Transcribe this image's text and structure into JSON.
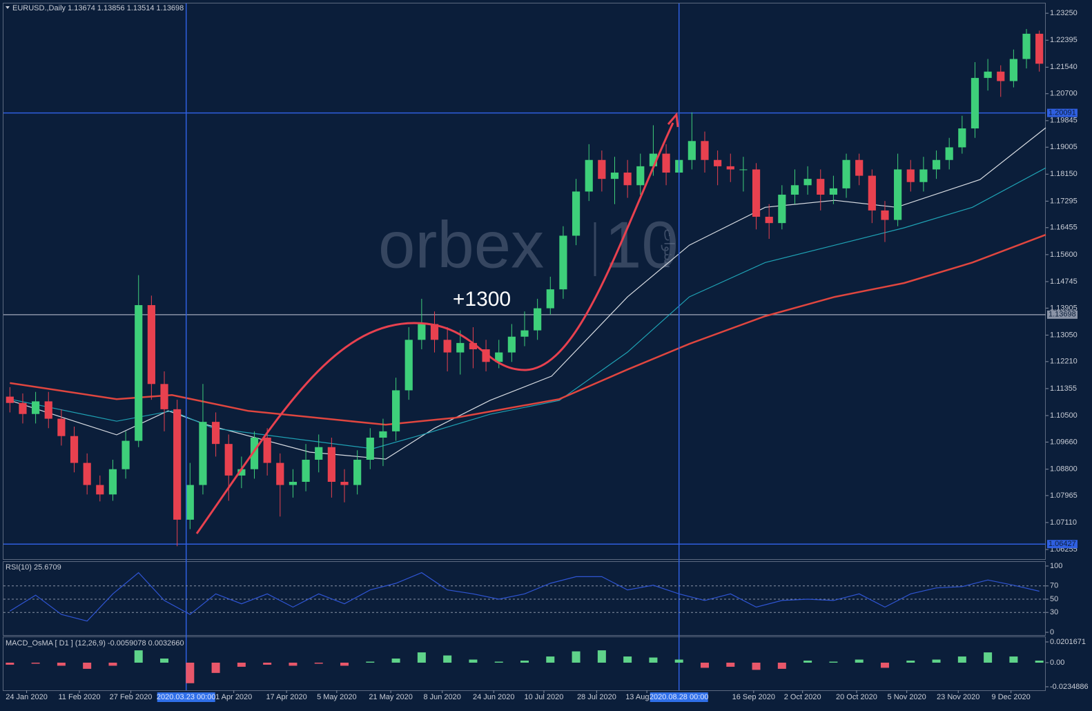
{
  "chart_data": [
    {
      "type": "candlestick",
      "title": "EURUSD.,Daily  1.13674 1.13856 1.13514 1.13698",
      "annotation": "+1300",
      "watermark": [
        "orbex",
        "10",
        "سنوات"
      ],
      "up_color": "#3ecf7a",
      "down_color": "#e8414f",
      "open": [
        1.111,
        1.109,
        1.1055,
        1.1095,
        1.104,
        1.0985,
        1.09,
        1.083,
        1.08,
        1.088,
        1.097,
        1.14,
        1.115,
        1.107,
        1.072,
        1.083,
        1.103,
        1.096,
        1.086,
        1.088,
        1.098,
        1.09,
        1.083,
        1.084,
        1.091,
        1.095,
        1.084,
        1.083,
        1.091,
        1.098,
        1.1,
        1.113,
        1.129,
        1.134,
        1.129,
        1.125,
        1.128,
        1.126,
        1.122,
        1.125,
        1.13,
        1.132,
        1.139,
        1.145,
        1.162,
        1.176,
        1.186,
        1.18,
        1.182,
        1.178,
        1.184,
        1.188,
        1.182,
        1.186,
        1.192,
        1.186,
        1.184,
        1.183,
        1.183,
        1.168,
        1.166,
        1.175,
        1.178,
        1.18,
        1.175,
        1.177,
        1.186,
        1.181,
        1.17,
        1.167,
        1.183,
        1.179,
        1.183,
        1.186,
        1.19,
        1.196,
        1.212,
        1.214,
        1.211,
        1.218,
        1.226
      ],
      "high": [
        1.114,
        1.112,
        1.1125,
        1.1125,
        1.107,
        1.1015,
        1.093,
        1.086,
        1.091,
        1.1,
        1.1495,
        1.143,
        1.119,
        1.11,
        1.09,
        1.115,
        1.106,
        1.099,
        1.092,
        1.1,
        1.101,
        1.093,
        1.088,
        1.096,
        1.099,
        1.098,
        1.088,
        1.094,
        1.101,
        1.104,
        1.117,
        1.133,
        1.142,
        1.138,
        1.133,
        1.132,
        1.133,
        1.129,
        1.129,
        1.134,
        1.138,
        1.142,
        1.149,
        1.165,
        1.18,
        1.191,
        1.189,
        1.187,
        1.186,
        1.188,
        1.197,
        1.191,
        1.19,
        1.2011,
        1.195,
        1.189,
        1.188,
        1.187,
        1.185,
        1.172,
        1.178,
        1.183,
        1.184,
        1.183,
        1.181,
        1.188,
        1.188,
        1.183,
        1.173,
        1.188,
        1.186,
        1.187,
        1.189,
        1.193,
        1.2,
        1.217,
        1.218,
        1.216,
        1.221,
        1.2275,
        1.227
      ],
      "low": [
        1.106,
        1.1025,
        1.1025,
        1.101,
        1.0955,
        1.087,
        1.08,
        1.0778,
        1.078,
        1.085,
        1.095,
        1.11,
        1.1,
        1.0636,
        1.069,
        1.08,
        1.092,
        1.078,
        1.082,
        1.085,
        1.086,
        1.073,
        1.079,
        1.081,
        1.087,
        1.079,
        1.0775,
        1.08,
        1.088,
        1.089,
        1.097,
        1.11,
        1.126,
        1.125,
        1.119,
        1.118,
        1.12,
        1.119,
        1.12,
        1.122,
        1.127,
        1.129,
        1.137,
        1.142,
        1.159,
        1.173,
        1.176,
        1.172,
        1.174,
        1.175,
        1.181,
        1.178,
        1.179,
        1.183,
        1.182,
        1.178,
        1.179,
        1.176,
        1.164,
        1.161,
        1.164,
        1.172,
        1.175,
        1.17,
        1.172,
        1.174,
        1.178,
        1.166,
        1.16,
        1.165,
        1.176,
        1.176,
        1.18,
        1.183,
        1.188,
        1.193,
        1.208,
        1.206,
        1.209,
        1.215,
        1.214
      ],
      "close": [
        1.109,
        1.1055,
        1.1095,
        1.104,
        1.0985,
        1.09,
        1.083,
        1.08,
        1.088,
        1.097,
        1.14,
        1.115,
        1.107,
        1.072,
        1.083,
        1.103,
        1.096,
        1.086,
        1.088,
        1.098,
        1.09,
        1.083,
        1.084,
        1.091,
        1.095,
        1.084,
        1.083,
        1.091,
        1.098,
        1.1,
        1.113,
        1.129,
        1.134,
        1.129,
        1.125,
        1.128,
        1.126,
        1.122,
        1.125,
        1.13,
        1.132,
        1.139,
        1.145,
        1.162,
        1.176,
        1.186,
        1.18,
        1.182,
        1.178,
        1.184,
        1.188,
        1.182,
        1.186,
        1.192,
        1.186,
        1.184,
        1.183,
        1.183,
        1.168,
        1.166,
        1.175,
        1.178,
        1.18,
        1.175,
        1.177,
        1.186,
        1.181,
        1.17,
        1.167,
        1.183,
        1.179,
        1.183,
        1.186,
        1.19,
        1.196,
        1.212,
        1.214,
        1.211,
        1.218,
        1.226,
        1.2165
      ],
      "series": [
        {
          "color": "#d9dde3",
          "x": [
            0,
            8.3,
            12.3,
            15.3,
            23.3,
            29.2,
            33,
            37.3,
            42.1,
            48,
            52.8,
            58.7,
            64.1,
            68.9,
            75.4,
            80.5
          ],
          "values": [
            1.1098,
            1.0989,
            1.1065,
            1.1021,
            1.0934,
            1.0912,
            1.101,
            1.1098,
            1.1175,
            1.1426,
            1.159,
            1.171,
            1.1732,
            1.171,
            1.1798,
            1.1962
          ]
        },
        {
          "color": "#1fa3b5",
          "x": [
            0,
            8.3,
            12.6,
            15.8,
            23.9,
            28.2,
            32,
            37.3,
            42.7,
            48,
            52.8,
            58.7,
            64.1,
            69.5,
            74.8,
            80.5
          ],
          "values": [
            1.1102,
            1.1032,
            1.1065,
            1.101,
            1.0967,
            1.0945,
            1.0989,
            1.1054,
            1.1098,
            1.1251,
            1.1426,
            1.1535,
            1.159,
            1.1645,
            1.171,
            1.1835
          ]
        },
        {
          "color": "#e0463f",
          "x": [
            0,
            8.3,
            12.6,
            18.5,
            29.2,
            34.6,
            42.7,
            48,
            52.8,
            58.7,
            64.1,
            69.5,
            74.8,
            80.5
          ],
          "values": [
            1.1153,
            1.1102,
            1.1115,
            1.1065,
            1.1021,
            1.1043,
            1.1102,
            1.1196,
            1.1277,
            1.1365,
            1.1426,
            1.147,
            1.1535,
            1.1623
          ]
        }
      ],
      "xlim": [
        -0.5,
        80.5
      ],
      "xticks": [
        {
          "value": 1.3,
          "label": "24 Jan 2020"
        },
        {
          "value": 5.4,
          "label": "11 Feb 2020"
        },
        {
          "value": 9.4,
          "label": "27 Feb 2020"
        },
        {
          "value": 17.4,
          "label": "1 Apr 2020"
        },
        {
          "value": 21.5,
          "label": "17 Apr 2020"
        },
        {
          "value": 25.4,
          "label": "5 May 2020"
        },
        {
          "value": 29.6,
          "label": "21 May 2020"
        },
        {
          "value": 33.6,
          "label": "8 Jun 2020"
        },
        {
          "value": 37.6,
          "label": "24 Jun 2020"
        },
        {
          "value": 41.5,
          "label": "10 Jul 2020"
        },
        {
          "value": 45.6,
          "label": "28 Jul 2020"
        },
        {
          "value": 49.5,
          "label": "13 Aug 2020"
        },
        {
          "value": 57.8,
          "label": "16 Sep 2020"
        },
        {
          "value": 61.6,
          "label": "2 Oct 2020"
        },
        {
          "value": 65.8,
          "label": "20 Oct 2020"
        },
        {
          "value": 69.7,
          "label": "5 Nov 2020"
        },
        {
          "value": 73.7,
          "label": "23 Nov 2020"
        },
        {
          "value": 77.8,
          "label": "9 Dec 2020"
        }
      ],
      "crosshair_x": [
        {
          "value": 13.7,
          "label": "2020.03.23 00:00"
        },
        {
          "value": 52,
          "label": "2020.08.28 00:00"
        }
      ],
      "ylim": [
        1.0595,
        1.2356
      ],
      "yticks": [
        {
          "value": 1.2325,
          "label": "1.23250"
        },
        {
          "value": 1.22395,
          "label": "1.22395"
        },
        {
          "value": 1.2154,
          "label": "1.21540"
        },
        {
          "value": 1.207,
          "label": "1.20700"
        },
        {
          "value": 1.19845,
          "label": "1.19845"
        },
        {
          "value": 1.19005,
          "label": "1.19005"
        },
        {
          "value": 1.1815,
          "label": "1.18150"
        },
        {
          "value": 1.17295,
          "label": "1.17295"
        },
        {
          "value": 1.16455,
          "label": "1.16455"
        },
        {
          "value": 1.156,
          "label": "1.15600"
        },
        {
          "value": 1.14745,
          "label": "1.14745"
        },
        {
          "value": 1.13905,
          "label": "1.13905"
        },
        {
          "value": 1.1305,
          "label": "1.13050"
        },
        {
          "value": 1.1221,
          "label": "1.12210"
        },
        {
          "value": 1.11355,
          "label": "1.11355"
        },
        {
          "value": 1.105,
          "label": "1.10500"
        },
        {
          "value": 1.0966,
          "label": "1.09660"
        },
        {
          "value": 1.088,
          "label": "1.08800"
        },
        {
          "value": 1.07965,
          "label": "1.07965"
        },
        {
          "value": 1.0711,
          "label": "1.07110"
        },
        {
          "value": 1.06255,
          "label": "1.06255"
        }
      ],
      "hlines": [
        {
          "value": 1.20091,
          "label": "1.20091",
          "color": "#2f5fe0"
        },
        {
          "value": 1.13698,
          "label": "1.13698",
          "color": "#8a93a6"
        },
        {
          "value": 1.06427,
          "label": "1.06427",
          "color": "#2f5fe0"
        }
      ]
    },
    {
      "type": "line",
      "title": "RSI(10) 25.6709",
      "color": "#2f55d4",
      "x": [
        0,
        2,
        4,
        6,
        8,
        10,
        12,
        14,
        16,
        18,
        20,
        22,
        24,
        26,
        28,
        30,
        32,
        34,
        36,
        38,
        40,
        42,
        44,
        46,
        48,
        50,
        52,
        54,
        56,
        58,
        60,
        62,
        64,
        66,
        68,
        70,
        72,
        74,
        76,
        78,
        80
      ],
      "values": [
        32,
        56,
        27,
        17,
        58,
        90,
        48,
        27,
        58,
        43,
        58,
        38,
        58,
        43,
        64,
        74,
        90,
        64,
        58,
        50,
        58,
        74,
        84,
        84,
        64,
        71,
        58,
        48,
        58,
        38,
        48,
        50,
        48,
        58,
        38,
        58,
        67,
        69,
        79,
        71,
        62
      ],
      "ylim": [
        0,
        100
      ],
      "yticks": [
        0,
        30,
        50,
        70,
        100
      ]
    },
    {
      "type": "bar",
      "title": "MACD_OsMA [ D1 ] (12,26,9) -0.0059078 0.0032660",
      "up_color": "#5fd38a",
      "down_color": "#e8576a",
      "x": [
        0,
        2,
        4,
        6,
        8,
        10,
        12,
        14,
        16,
        18,
        20,
        22,
        24,
        26,
        28,
        30,
        32,
        34,
        36,
        38,
        40,
        42,
        44,
        46,
        48,
        50,
        52,
        54,
        56,
        58,
        60,
        62,
        64,
        66,
        68,
        70,
        72,
        74,
        76,
        78,
        80
      ],
      "values": [
        -0.002,
        -0.001,
        -0.003,
        -0.006,
        -0.003,
        0.012,
        0.004,
        -0.02,
        -0.01,
        -0.004,
        -0.002,
        -0.003,
        -0.001,
        -0.003,
        0.001,
        0.004,
        0.01,
        0.007,
        0.003,
        0.001,
        0.002,
        0.006,
        0.011,
        0.012,
        0.006,
        0.005,
        0.003,
        -0.005,
        -0.004,
        -0.007,
        -0.006,
        0.002,
        0.001,
        0.003,
        -0.005,
        0.002,
        0.003,
        0.006,
        0.01,
        0.006,
        0.002
      ],
      "ylim": [
        -0.0269,
        0.0235
      ],
      "yticks": [
        0.0201671,
        {
          "value": 0,
          "label": "0.00"
        },
        -0.0234886
      ]
    }
  ]
}
